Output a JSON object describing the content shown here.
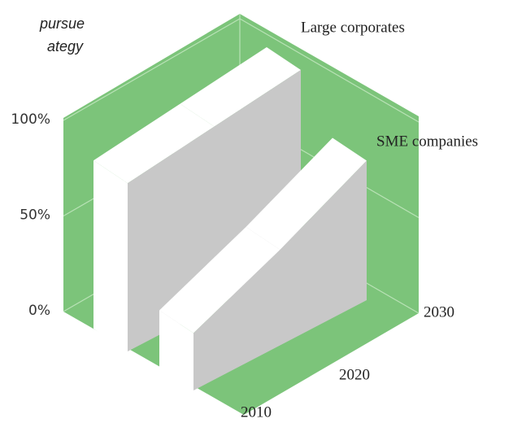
{
  "chart_data": {
    "type": "ribbon3d",
    "title": [
      "pursue",
      "ategy"
    ],
    "categories": [
      "2010",
      "2020",
      "2030"
    ],
    "series": [
      {
        "name": "Large corporates",
        "color": "#c8c8c8",
        "values": [
          88,
          94,
          100
        ]
      },
      {
        "name": "SME companies",
        "color": "#c8c8c8",
        "values": [
          30,
          50,
          73
        ]
      }
    ],
    "ylim": [
      0,
      100
    ],
    "yticks": [
      {
        "value": 0,
        "label": "0%"
      },
      {
        "value": 50,
        "label": "50%"
      },
      {
        "value": 100,
        "label": "100%"
      }
    ],
    "wall_color": "#7cc47a",
    "grid": true
  }
}
